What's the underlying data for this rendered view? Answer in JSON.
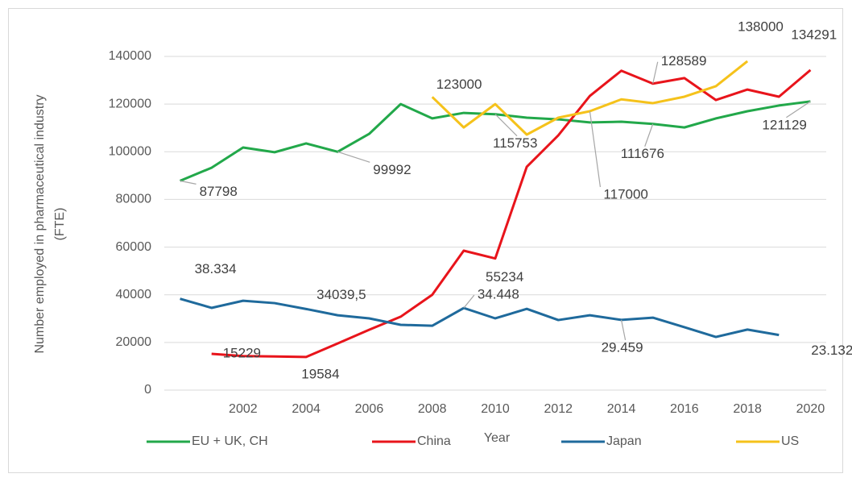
{
  "chart_data": {
    "type": "line",
    "y_label": [
      "Number employed in pharmaceutical industry",
      "(FTE)"
    ],
    "x_label": "Year",
    "x": [
      2000,
      2001,
      2002,
      2003,
      2004,
      2005,
      2006,
      2007,
      2008,
      2009,
      2010,
      2011,
      2012,
      2013,
      2014,
      2015,
      2016,
      2017,
      2018,
      2019,
      2020
    ],
    "xlim": [
      1999.5,
      2020.5
    ],
    "xticks": [
      2002,
      2004,
      2006,
      2008,
      2010,
      2012,
      2014,
      2016,
      2018,
      2020
    ],
    "ylim": [
      0,
      140000
    ],
    "yticks": [
      0,
      20000,
      40000,
      60000,
      80000,
      100000,
      120000,
      140000
    ],
    "grid": true,
    "legend": "bottom",
    "series": [
      {
        "name": "EU + UK, CH",
        "color": "#22a84a",
        "values": [
          87798,
          93300,
          101800,
          99800,
          103500,
          99992,
          107500,
          120000,
          114000,
          116300,
          115753,
          114300,
          113600,
          112300,
          112600,
          111676,
          110200,
          114000,
          117000,
          119400,
          121129
        ],
        "value_labels": [
          "87798",
          null,
          null,
          null,
          null,
          "99992",
          null,
          null,
          null,
          null,
          "115753",
          null,
          null,
          null,
          null,
          "111676",
          null,
          null,
          null,
          null,
          "121129"
        ]
      },
      {
        "name": "China",
        "color": "#e8141b",
        "values": [
          null,
          15229,
          14300,
          14100,
          13900,
          19584,
          25300,
          30800,
          40000,
          58500,
          55234,
          93700,
          106900,
          123400,
          134000,
          128589,
          130900,
          121700,
          126100,
          123100,
          134291
        ],
        "value_labels": [
          null,
          "15229",
          null,
          null,
          null,
          "19584",
          null,
          null,
          null,
          null,
          "55234",
          null,
          null,
          null,
          null,
          "128589",
          null,
          null,
          null,
          null,
          "134291"
        ]
      },
      {
        "name": "Japan",
        "color": "#1f6a9c",
        "values": [
          38334,
          34500,
          37500,
          36500,
          34039.5,
          31400,
          30100,
          27400,
          27000,
          34448,
          30100,
          34100,
          29400,
          31400,
          29459,
          30400,
          26400,
          22300,
          25400,
          23132,
          null
        ],
        "value_labels": [
          "38.334",
          null,
          null,
          null,
          "34039,5",
          null,
          null,
          null,
          null,
          "34.448",
          null,
          null,
          null,
          null,
          "29.459",
          null,
          null,
          null,
          null,
          "23.132",
          null
        ]
      },
      {
        "name": "US",
        "color": "#f5c21b",
        "values": [
          null,
          null,
          null,
          null,
          null,
          null,
          null,
          null,
          123000,
          110200,
          120000,
          107200,
          114300,
          117000,
          122000,
          120400,
          123100,
          127500,
          138000,
          null,
          null
        ],
        "value_labels": [
          null,
          null,
          null,
          null,
          null,
          null,
          null,
          null,
          "123000",
          null,
          null,
          null,
          null,
          "117000",
          null,
          null,
          null,
          null,
          "138000",
          null,
          null
        ]
      }
    ]
  }
}
